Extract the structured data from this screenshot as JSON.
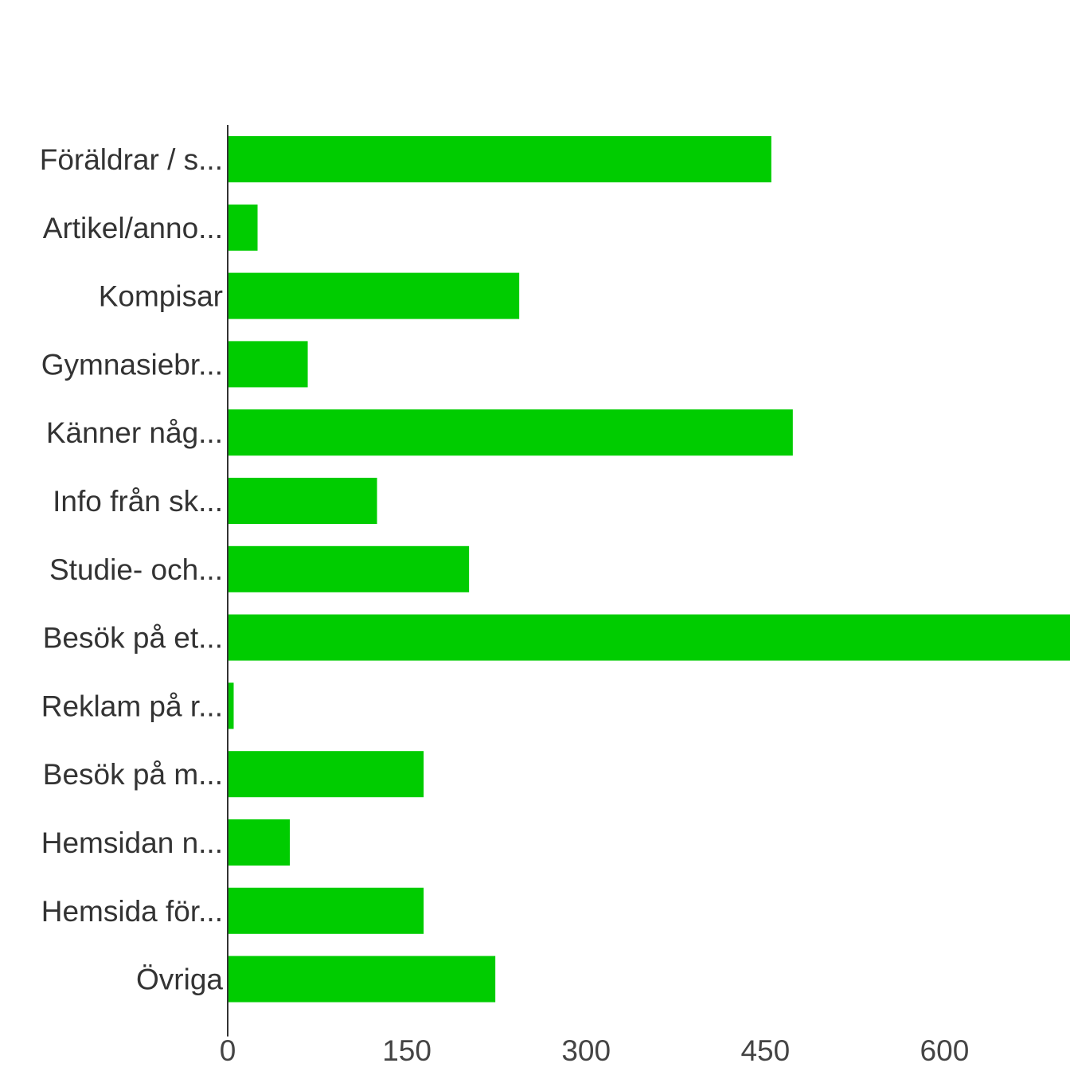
{
  "chart_data": {
    "type": "bar",
    "orientation": "horizontal",
    "title": "",
    "xlabel": "",
    "ylabel": "",
    "categories": [
      "Föräldrar / s...",
      "Artikel/anno...",
      "Kompisar",
      "Gymnasiebr...",
      "Känner någ...",
      "Info från sk...",
      "Studie- och...",
      "Besök på et...",
      "Reklam på r...",
      "Besök på m...",
      "Hemsidan n...",
      "Hemsida för...",
      "Övriga"
    ],
    "values": [
      455,
      25,
      244,
      67,
      473,
      125,
      202,
      705,
      5,
      164,
      52,
      164,
      224
    ],
    "xlim": [
      0,
      705
    ],
    "ticks": [
      0,
      150,
      300,
      450,
      600
    ],
    "tick_labels": [
      "0",
      "150",
      "300",
      "450",
      "600"
    ],
    "grid": false,
    "legend": "none",
    "bar_color": "#00cc00",
    "axis_color": "#333333",
    "text_color": "#333333"
  }
}
